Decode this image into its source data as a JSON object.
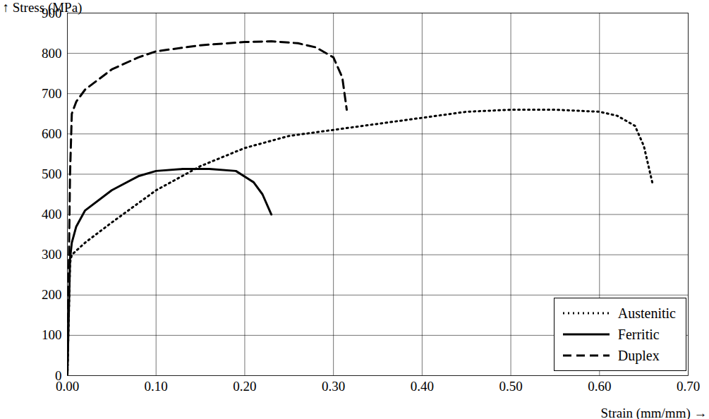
{
  "chart_data": {
    "type": "line",
    "x_label": "Strain (mm/mm)",
    "y_label": "Stress (MPa)",
    "xlim": [
      0,
      0.7
    ],
    "xticks": [
      {
        "value": 0,
        "label": "0.00"
      },
      {
        "value": 0.1,
        "label": "0.10"
      },
      {
        "value": 0.2,
        "label": "0.20"
      },
      {
        "value": 0.3,
        "label": "0.30"
      },
      {
        "value": 0.4,
        "label": "0.40"
      },
      {
        "value": 0.5,
        "label": "0.50"
      },
      {
        "value": 0.6,
        "label": "0.60"
      },
      {
        "value": 0.7,
        "label": "0.70"
      }
    ],
    "ylim": [
      0,
      900
    ],
    "yticks": [
      0,
      100,
      200,
      300,
      400,
      500,
      600,
      700,
      800,
      900
    ],
    "grid": true,
    "legend": "bottom-right",
    "series": [
      {
        "name": "Austenitic",
        "color": "#000000",
        "line_style": "dotted",
        "x": [
          0,
          0.003,
          0.005,
          0.02,
          0.05,
          0.1,
          0.15,
          0.2,
          0.25,
          0.3,
          0.35,
          0.4,
          0.45,
          0.5,
          0.55,
          0.6,
          0.62,
          0.64,
          0.65,
          0.66
        ],
        "values": [
          0,
          280,
          300,
          330,
          380,
          460,
          520,
          565,
          595,
          610,
          625,
          640,
          655,
          660,
          660,
          655,
          645,
          620,
          570,
          475
        ]
      },
      {
        "name": "Ferritic",
        "color": "#000000",
        "line_style": "solid",
        "x": [
          0,
          0.003,
          0.005,
          0.01,
          0.02,
          0.05,
          0.08,
          0.1,
          0.13,
          0.16,
          0.19,
          0.21,
          0.22,
          0.23
        ],
        "values": [
          0,
          290,
          330,
          370,
          410,
          460,
          495,
          508,
          513,
          513,
          508,
          480,
          450,
          400
        ]
      },
      {
        "name": "Duplex",
        "color": "#000000",
        "line_style": "dashed",
        "x": [
          0,
          0.003,
          0.005,
          0.01,
          0.02,
          0.05,
          0.08,
          0.1,
          0.15,
          0.2,
          0.23,
          0.26,
          0.28,
          0.3,
          0.31,
          0.315
        ],
        "values": [
          0,
          500,
          650,
          680,
          710,
          760,
          790,
          805,
          820,
          828,
          830,
          825,
          815,
          790,
          740,
          660
        ]
      }
    ]
  }
}
